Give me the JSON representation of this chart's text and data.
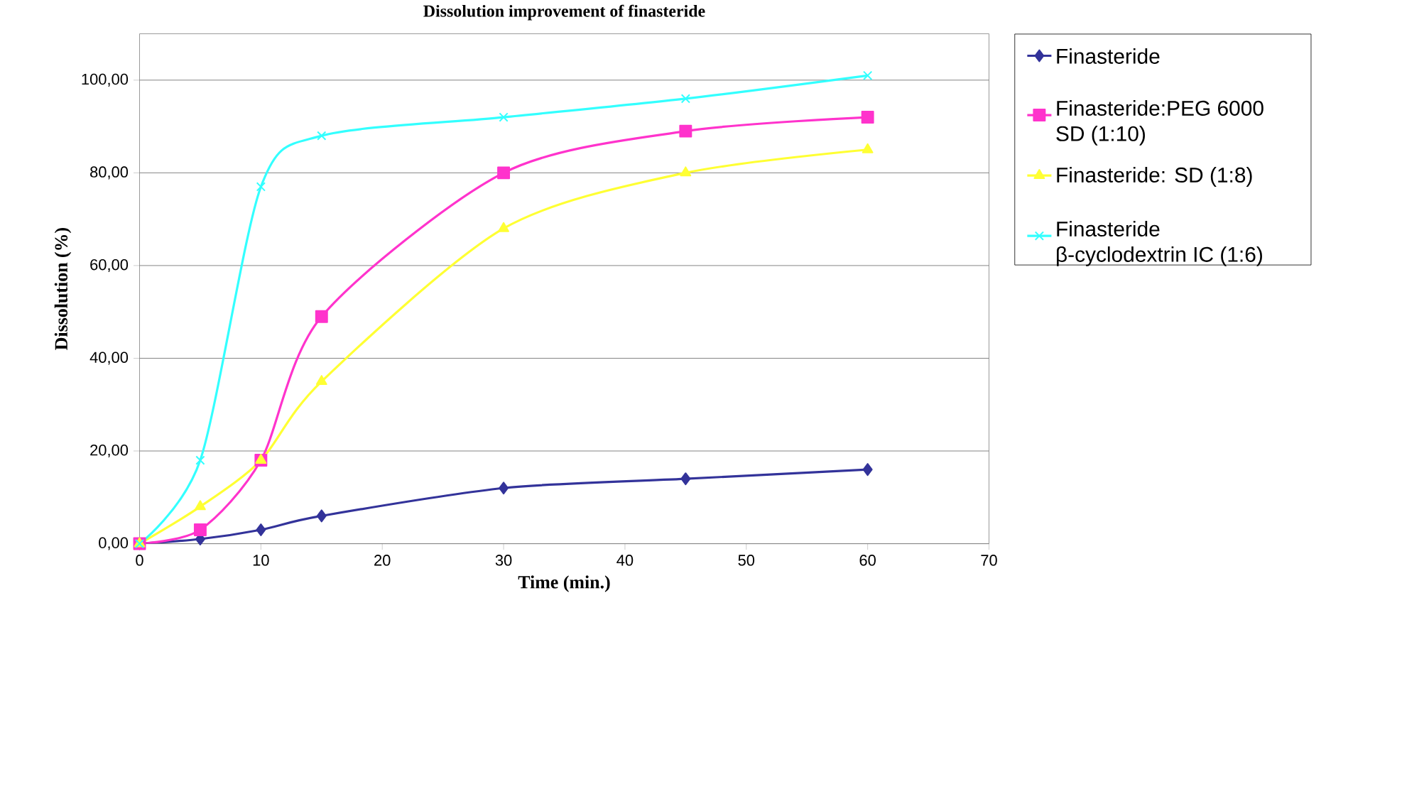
{
  "chart_data": {
    "type": "line",
    "title": "Dissolution improvement of finasteride",
    "xlabel": "Time (min.)",
    "ylabel": "Dissolution (%)",
    "x": [
      0,
      5,
      10,
      15,
      30,
      45,
      60
    ],
    "series": [
      {
        "name": "Finasteride",
        "color": "#33339a",
        "marker": "diamond",
        "values": [
          0,
          1,
          3,
          6,
          12,
          14,
          16
        ]
      },
      {
        "name": "Finasteride:PEG 6000 SD (1:10)",
        "color": "#ff33cc",
        "marker": "square",
        "values": [
          0,
          3,
          18,
          49,
          80,
          89,
          92
        ]
      },
      {
        "name": "Finasteride: SD (1:8)",
        "color": "#ffff33",
        "marker": "triangle",
        "values": [
          0,
          8,
          18,
          35,
          68,
          80,
          85
        ]
      },
      {
        "name": "Finasteride β-cyclodextrin IC (1:6)",
        "color": "#33ffff",
        "marker": "cross",
        "values": [
          0,
          18,
          77,
          88,
          92,
          96,
          101
        ]
      }
    ],
    "xlim": [
      0,
      70
    ],
    "xticks": [
      0,
      10,
      20,
      30,
      40,
      50,
      60,
      70
    ],
    "ylim": [
      0,
      110
    ],
    "yticks": [
      {
        "value": 0,
        "label": "0,00"
      },
      {
        "value": 20,
        "label": "20,00"
      },
      {
        "value": 40,
        "label": "40,00"
      },
      {
        "value": 60,
        "label": "60,00"
      },
      {
        "value": 80,
        "label": "80,00"
      },
      {
        "value": 100,
        "label": "100,00"
      }
    ],
    "grid": "y",
    "legend": "right"
  }
}
